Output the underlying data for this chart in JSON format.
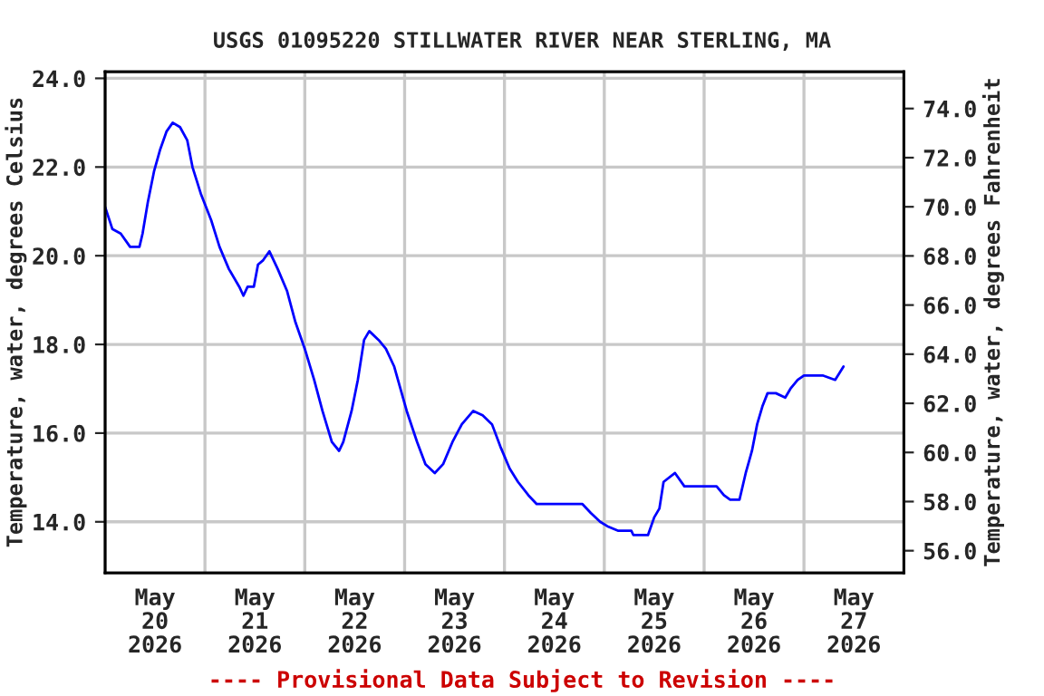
{
  "chart_data": {
    "type": "line",
    "title": "USGS 01095220 STILLWATER RIVER NEAR STERLING, MA",
    "ylabel": "Temperature, water, degrees Celsius",
    "y2label": "Temperature, water, degrees Fahrenheit",
    "annotations": [
      "---- Provisional Data Subject to Revision ----"
    ],
    "x": [
      "2026-05-20T00:00",
      "2026-05-20T01:45",
      "2026-05-20T03:45",
      "2026-05-20T06:00",
      "2026-05-20T08:15",
      "2026-05-20T09:00",
      "2026-05-20T10:15",
      "2026-05-20T11:45",
      "2026-05-20T13:15",
      "2026-05-20T14:45",
      "2026-05-20T16:15",
      "2026-05-20T18:00",
      "2026-05-20T19:45",
      "2026-05-20T21:00",
      "2026-05-20T23:00",
      "2026-05-21T01:30",
      "2026-05-21T03:30",
      "2026-05-21T05:45",
      "2026-05-21T08:15",
      "2026-05-21T09:15",
      "2026-05-21T10:15",
      "2026-05-21T11:45",
      "2026-05-21T12:45",
      "2026-05-21T14:00",
      "2026-05-21T15:30",
      "2026-05-21T17:30",
      "2026-05-21T19:45",
      "2026-05-21T21:45",
      "2026-05-22T00:00",
      "2026-05-22T02:15",
      "2026-05-22T04:15",
      "2026-05-22T06:30",
      "2026-05-22T08:15",
      "2026-05-22T09:15",
      "2026-05-22T11:15",
      "2026-05-22T12:45",
      "2026-05-22T14:15",
      "2026-05-22T15:30",
      "2026-05-22T17:45",
      "2026-05-22T19:30",
      "2026-05-22T21:30",
      "2026-05-23T00:30",
      "2026-05-23T03:00",
      "2026-05-23T05:00",
      "2026-05-23T07:15",
      "2026-05-23T09:15",
      "2026-05-23T11:30",
      "2026-05-23T13:45",
      "2026-05-23T16:30",
      "2026-05-23T18:45",
      "2026-05-23T21:00",
      "2026-05-23T23:00",
      "2026-05-24T01:15",
      "2026-05-24T03:15",
      "2026-05-24T05:45",
      "2026-05-24T07:45",
      "2026-05-24T18:45",
      "2026-05-24T20:45",
      "2026-05-24T23:00",
      "2026-05-25T00:45",
      "2026-05-25T03:15",
      "2026-05-25T06:30",
      "2026-05-25T07:00",
      "2026-05-25T10:30",
      "2026-05-25T12:00",
      "2026-05-25T13:15",
      "2026-05-25T14:15",
      "2026-05-25T17:00",
      "2026-05-25T19:15",
      "2026-05-26T03:00",
      "2026-05-26T04:45",
      "2026-05-26T06:15",
      "2026-05-26T08:30",
      "2026-05-26T10:00",
      "2026-05-26T11:30",
      "2026-05-26T12:45",
      "2026-05-26T14:00",
      "2026-05-26T15:15",
      "2026-05-26T17:15",
      "2026-05-26T19:30",
      "2026-05-26T20:45",
      "2026-05-26T22:30",
      "2026-05-27T00:00",
      "2026-05-27T04:30",
      "2026-05-27T07:30",
      "2026-05-27T09:30"
    ],
    "series": [
      {
        "color": "#0000ff",
        "values": [
          21.1,
          20.6,
          20.5,
          20.2,
          20.2,
          20.5,
          21.2,
          21.9,
          22.4,
          22.8,
          23.0,
          22.9,
          22.6,
          22.0,
          21.4,
          20.8,
          20.2,
          19.7,
          19.3,
          19.1,
          19.3,
          19.3,
          19.8,
          19.9,
          20.1,
          19.7,
          19.2,
          18.5,
          17.9,
          17.2,
          16.5,
          15.8,
          15.6,
          15.8,
          16.5,
          17.2,
          18.1,
          18.3,
          18.1,
          17.9,
          17.5,
          16.5,
          15.8,
          15.3,
          15.1,
          15.3,
          15.8,
          16.2,
          16.5,
          16.4,
          16.2,
          15.7,
          15.2,
          14.9,
          14.6,
          14.4,
          14.4,
          14.2,
          14.0,
          13.9,
          13.8,
          13.8,
          13.7,
          13.7,
          14.1,
          14.3,
          14.9,
          15.1,
          14.8,
          14.8,
          14.6,
          14.5,
          14.5,
          15.1,
          15.6,
          16.2,
          16.6,
          16.9,
          16.9,
          16.8,
          17.0,
          17.2,
          17.3,
          17.3,
          17.2,
          17.5
        ]
      }
    ],
    "xlim": [
      "2026-05-20T00:00",
      "2026-05-28T00:00"
    ],
    "xticks": [
      {
        "value": "2026-05-21T00:00",
        "label": null
      },
      {
        "value": "2026-05-22T00:00",
        "label": null
      },
      {
        "value": "2026-05-23T00:00",
        "label": null
      },
      {
        "value": "2026-05-24T00:00",
        "label": null
      },
      {
        "value": "2026-05-25T00:00",
        "label": null
      },
      {
        "value": "2026-05-26T00:00",
        "label": null
      },
      {
        "value": "2026-05-27T00:00",
        "label": null
      },
      {
        "value": "2026-05-20T12:00",
        "label": "May\n20\n2026"
      },
      {
        "value": "2026-05-21T12:00",
        "label": "May\n21\n2026"
      },
      {
        "value": "2026-05-22T12:00",
        "label": "May\n22\n2026"
      },
      {
        "value": "2026-05-23T12:00",
        "label": "May\n23\n2026"
      },
      {
        "value": "2026-05-24T12:00",
        "label": "May\n24\n2026"
      },
      {
        "value": "2026-05-25T12:00",
        "label": "May\n25\n2026"
      },
      {
        "value": "2026-05-26T12:00",
        "label": "May\n26\n2026"
      },
      {
        "value": "2026-05-27T12:00",
        "label": "May\n27\n2026"
      }
    ],
    "ylim": [
      12.85,
      24.15
    ],
    "yticks": [
      {
        "value": 14,
        "label": "14.0"
      },
      {
        "value": 16,
        "label": "16.0"
      },
      {
        "value": 18,
        "label": "18.0"
      },
      {
        "value": 20,
        "label": "20.0"
      },
      {
        "value": 22,
        "label": "22.0"
      },
      {
        "value": 24,
        "label": "24.0"
      }
    ],
    "y2lim": [
      55.1,
      75.5
    ],
    "y2ticks": [
      {
        "value": 56,
        "label": "56.0"
      },
      {
        "value": 58,
        "label": "58.0"
      },
      {
        "value": 60,
        "label": "60.0"
      },
      {
        "value": 62,
        "label": "62.0"
      },
      {
        "value": 64,
        "label": "64.0"
      },
      {
        "value": 66,
        "label": "66.0"
      },
      {
        "value": 68,
        "label": "68.0"
      },
      {
        "value": 70,
        "label": "70.0"
      },
      {
        "value": 72,
        "label": "72.0"
      },
      {
        "value": 74,
        "label": "74.0"
      }
    ],
    "grid": true,
    "line_style": "solid"
  }
}
